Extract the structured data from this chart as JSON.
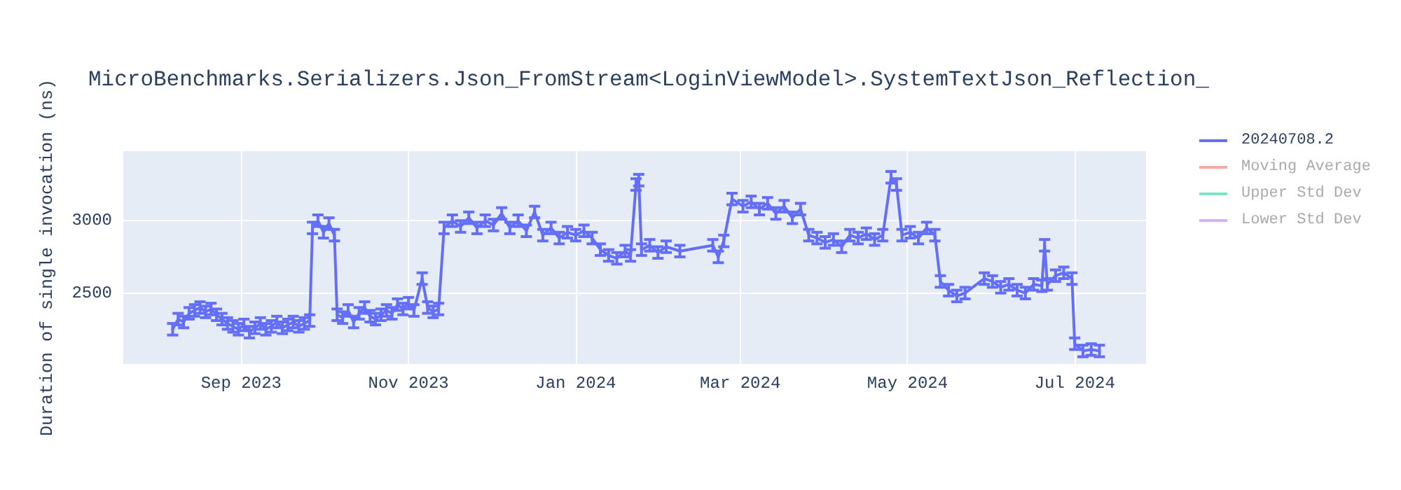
{
  "chart_data": {
    "type": "line",
    "title": "MicroBenchmarks.Serializers.Json_FromStream<LoginViewModel>.SystemTextJson_Reflection_",
    "ylabel": "Duration of single invocation (ns)",
    "xlim": [
      "2023-07-20",
      "2024-07-27"
    ],
    "xticks": [
      {
        "value": "2023-09-01",
        "label": "Sep 2023"
      },
      {
        "value": "2023-11-01",
        "label": "Nov 2023"
      },
      {
        "value": "2024-01-01",
        "label": "Jan 2024"
      },
      {
        "value": "2024-03-01",
        "label": "Mar 2024"
      },
      {
        "value": "2024-05-01",
        "label": "May 2024"
      },
      {
        "value": "2024-07-01",
        "label": "Jul 2024"
      }
    ],
    "ylim": [
      2010,
      3480
    ],
    "yticks": [
      2500,
      3000
    ],
    "grid": true,
    "legend": "top right",
    "marker": "none",
    "line_style": "solid",
    "series": [
      {
        "name": "20240708.2",
        "color": "#636efa",
        "x": [
          "2023-08-07",
          "2023-08-09",
          "2023-08-11",
          "2023-08-13",
          "2023-08-15",
          "2023-08-17",
          "2023-08-19",
          "2023-08-21",
          "2023-08-23",
          "2023-08-25",
          "2023-08-27",
          "2023-08-29",
          "2023-08-31",
          "2023-09-02",
          "2023-09-04",
          "2023-09-06",
          "2023-09-08",
          "2023-09-10",
          "2023-09-12",
          "2023-09-14",
          "2023-09-16",
          "2023-09-18",
          "2023-09-20",
          "2023-09-22",
          "2023-09-24",
          "2023-09-26",
          "2023-09-27",
          "2023-09-29",
          "2023-10-01",
          "2023-10-03",
          "2023-10-05",
          "2023-10-06",
          "2023-10-08",
          "2023-10-10",
          "2023-10-12",
          "2023-10-14",
          "2023-10-16",
          "2023-10-18",
          "2023-10-20",
          "2023-10-22",
          "2023-10-24",
          "2023-10-26",
          "2023-10-28",
          "2023-10-30",
          "2023-11-01",
          "2023-11-03",
          "2023-11-06",
          "2023-11-08",
          "2023-11-10",
          "2023-11-12",
          "2023-11-14",
          "2023-11-17",
          "2023-11-20",
          "2023-11-23",
          "2023-11-26",
          "2023-11-29",
          "2023-12-02",
          "2023-12-05",
          "2023-12-08",
          "2023-12-11",
          "2023-12-14",
          "2023-12-17",
          "2023-12-20",
          "2023-12-23",
          "2023-12-26",
          "2023-12-29",
          "2024-01-01",
          "2024-01-04",
          "2024-01-07",
          "2024-01-10",
          "2024-01-13",
          "2024-01-16",
          "2024-01-19",
          "2024-01-21",
          "2024-01-23",
          "2024-01-24",
          "2024-01-25",
          "2024-01-28",
          "2024-01-31",
          "2024-02-03",
          "2024-02-08",
          "2024-02-20",
          "2024-02-22",
          "2024-02-24",
          "2024-02-27",
          "2024-03-02",
          "2024-03-05",
          "2024-03-08",
          "2024-03-11",
          "2024-03-14",
          "2024-03-17",
          "2024-03-20",
          "2024-03-23",
          "2024-03-26",
          "2024-03-29",
          "2024-04-01",
          "2024-04-04",
          "2024-04-07",
          "2024-04-10",
          "2024-04-13",
          "2024-04-16",
          "2024-04-19",
          "2024-04-22",
          "2024-04-25",
          "2024-04-27",
          "2024-04-29",
          "2024-05-02",
          "2024-05-05",
          "2024-05-08",
          "2024-05-11",
          "2024-05-13",
          "2024-05-16",
          "2024-05-19",
          "2024-05-22",
          "2024-05-29",
          "2024-06-01",
          "2024-06-04",
          "2024-06-07",
          "2024-06-10",
          "2024-06-13",
          "2024-06-16",
          "2024-06-19",
          "2024-06-20",
          "2024-06-21",
          "2024-06-24",
          "2024-06-27",
          "2024-06-30",
          "2024-07-01",
          "2024-07-04",
          "2024-07-07",
          "2024-07-10"
        ],
        "values": [
          2250,
          2320,
          2300,
          2360,
          2380,
          2400,
          2370,
          2390,
          2350,
          2320,
          2290,
          2270,
          2250,
          2280,
          2230,
          2260,
          2290,
          2250,
          2270,
          2300,
          2260,
          2280,
          2300,
          2270,
          2290,
          2310,
          2950,
          3000,
          2920,
          2980,
          2900,
          2350,
          2330,
          2380,
          2300,
          2360,
          2400,
          2340,
          2320,
          2350,
          2380,
          2360,
          2420,
          2390,
          2430,
          2380,
          2600,
          2400,
          2370,
          2390,
          2950,
          3000,
          2960,
          3020,
          2950,
          3000,
          2970,
          3050,
          2950,
          3000,
          2930,
          3060,
          2900,
          2950,
          2880,
          2920,
          2900,
          2930,
          2880,
          2800,
          2760,
          2740,
          2790,
          2760,
          3250,
          3280,
          2800,
          2830,
          2780,
          2820,
          2790,
          2830,
          2750,
          2860,
          3150,
          3100,
          3130,
          3080,
          3120,
          3050,
          3100,
          3020,
          3080,
          2900,
          2880,
          2850,
          2870,
          2820,
          2900,
          2880,
          2910,
          2870,
          2900,
          3300,
          3250,
          2900,
          2920,
          2880,
          2950,
          2900,
          2580,
          2520,
          2480,
          2500,
          2600,
          2580,
          2540,
          2560,
          2520,
          2500,
          2560,
          2550,
          2830,
          2560,
          2620,
          2640,
          2600,
          2150,
          2100,
          2110,
          2100
        ],
        "errors": [
          40,
          40,
          40,
          40,
          40,
          40,
          40,
          40,
          40,
          40,
          40,
          40,
          40,
          40,
          40,
          40,
          40,
          40,
          40,
          40,
          40,
          40,
          40,
          40,
          40,
          40,
          40,
          40,
          40,
          40,
          40,
          40,
          40,
          40,
          40,
          40,
          40,
          40,
          40,
          40,
          40,
          40,
          40,
          40,
          40,
          40,
          40,
          40,
          40,
          40,
          40,
          40,
          40,
          40,
          40,
          40,
          40,
          40,
          40,
          40,
          40,
          40,
          40,
          40,
          40,
          40,
          40,
          40,
          40,
          40,
          40,
          40,
          40,
          40,
          40,
          40,
          40,
          40,
          40,
          40,
          40,
          40,
          40,
          40,
          40,
          40,
          40,
          40,
          40,
          40,
          40,
          40,
          40,
          40,
          40,
          40,
          40,
          40,
          40,
          40,
          40,
          40,
          40,
          40,
          40,
          40,
          40,
          40,
          40,
          40,
          40,
          40,
          40,
          40,
          40,
          40,
          40,
          40,
          40,
          40,
          40,
          40,
          40,
          40,
          40,
          40,
          40,
          40,
          40,
          40,
          40
        ]
      },
      {
        "name": "Moving Average",
        "color": "#ef553b"
      },
      {
        "name": "Upper Std Dev",
        "color": "#00cc96"
      },
      {
        "name": "Lower Std Dev",
        "color": "#ab63fa"
      }
    ]
  }
}
